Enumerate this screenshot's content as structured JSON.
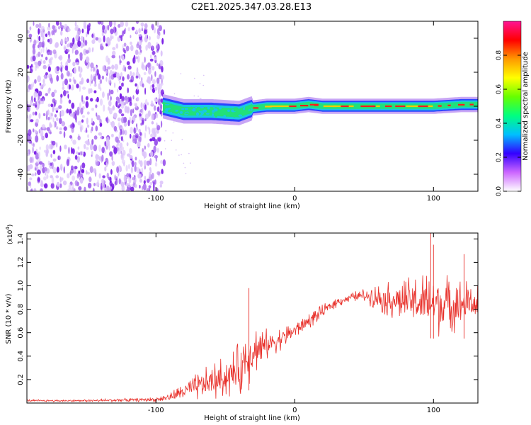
{
  "title": "C2E1.2025.347.03.28.E13",
  "colors": {
    "snr_line": "#e8302a",
    "scatter_purple": "#7a2fe6",
    "band_green": "#22e07a",
    "band_red": "#ff1a1a",
    "band_cyan": "#19c6e6",
    "band_blue": "#2a44ff",
    "axis": "#000000"
  },
  "chart_data": [
    {
      "type": "heatmap",
      "title": "C2E1.2025.347.03.28.E13",
      "xlabel": "Height of straight line (km)",
      "ylabel": "Frequency (Hz)",
      "xlim": [
        -193,
        132
      ],
      "ylim": [
        -50,
        50
      ],
      "x_ticks": [
        -100,
        0,
        100
      ],
      "x_tick_labels": [
        "-100",
        "0",
        "100"
      ],
      "y_ticks": [
        -40,
        -20,
        0,
        20,
        40
      ],
      "y_tick_labels": [
        "-40",
        "-20",
        "0",
        "20",
        "40"
      ],
      "noise_region_x": [
        -193,
        -94
      ],
      "band_centerline": {
        "x": [
          -95,
          -80,
          -60,
          -40,
          -30,
          -20,
          -10,
          0,
          10,
          20,
          40,
          60,
          80,
          100,
          120,
          132
        ],
        "y": [
          0,
          -3,
          -3,
          -4,
          -1,
          0,
          0,
          0,
          1,
          0,
          0,
          0,
          0,
          0,
          1,
          1
        ]
      },
      "colorbar": {
        "label": "Normalized spectral amplitude",
        "range": [
          0,
          1
        ],
        "ticks": [
          0.0,
          0.2,
          0.4,
          0.6,
          0.8
        ],
        "tick_labels": [
          "0.0",
          "0.2",
          "0.4",
          "0.6",
          "0.8"
        ],
        "stops": [
          "#ffffff",
          "#cc66ff",
          "#3300ff",
          "#00bfff",
          "#00ff80",
          "#66ff00",
          "#ffff00",
          "#ff9900",
          "#ff0000",
          "#ff1493"
        ]
      }
    },
    {
      "type": "line",
      "xlabel": "Height of straight line (km)",
      "ylabel": "SNR (10 * v/v)",
      "y_scale_label": "(x10",
      "y_scale_exponent": "4",
      "xlim": [
        -193,
        132
      ],
      "ylim": [
        0.0,
        1.45
      ],
      "x_ticks": [
        -100,
        0,
        100
      ],
      "x_tick_labels": [
        "-100",
        "0",
        "100"
      ],
      "y_ticks": [
        0.2,
        0.4,
        0.6,
        0.8,
        1.0,
        1.2,
        1.4
      ],
      "y_tick_labels": [
        "0.2",
        "0.4",
        "0.6",
        "0.8",
        "1.0",
        "1.2",
        "1.4"
      ],
      "series": [
        {
          "name": "SNR",
          "x": [
            -193,
            -150,
            -100,
            -90,
            -80,
            -70,
            -60,
            -50,
            -40,
            -35,
            -30,
            -20,
            -10,
            0,
            10,
            20,
            30,
            40,
            50,
            60,
            70,
            80,
            90,
            100,
            110,
            120,
            132
          ],
          "y": [
            0.02,
            0.02,
            0.03,
            0.05,
            0.1,
            0.14,
            0.18,
            0.22,
            0.28,
            0.38,
            0.45,
            0.5,
            0.55,
            0.62,
            0.7,
            0.78,
            0.86,
            0.9,
            0.92,
            0.9,
            0.88,
            0.87,
            0.86,
            0.85,
            0.84,
            0.85,
            0.85
          ],
          "spread": [
            0.01,
            0.01,
            0.02,
            0.04,
            0.08,
            0.12,
            0.16,
            0.18,
            0.24,
            0.3,
            0.22,
            0.14,
            0.1,
            0.08,
            0.07,
            0.06,
            0.05,
            0.04,
            0.06,
            0.12,
            0.16,
            0.2,
            0.26,
            0.32,
            0.28,
            0.22,
            0.16
          ],
          "peaks": [
            {
              "x": 98,
              "y": 1.45
            },
            {
              "x": 122,
              "y": 1.27
            },
            {
              "x": 100,
              "y": 1.35
            },
            {
              "x": -33,
              "y": 0.98
            }
          ]
        }
      ]
    }
  ]
}
